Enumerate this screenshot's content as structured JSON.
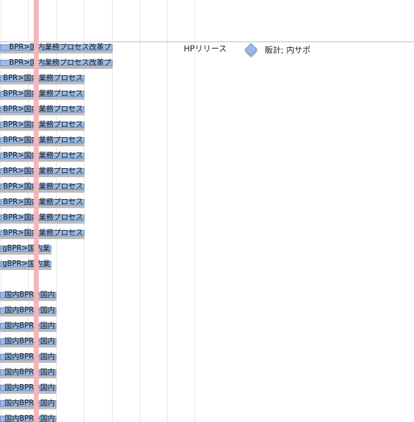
{
  "timeline": {
    "milestone_label": "HPリリース",
    "legend_label": "販計; 内サポ",
    "colors": {
      "bar_fill": "#9cbbe6",
      "bar_border": "#6f94c9",
      "bar_shadow": "#bdbdbd",
      "today_line": "#f4b6bb",
      "gridline": "#e6e6e6"
    },
    "tasks": [
      {
        "label": "BPR>国内業務プロセス改革プ"
      },
      {
        "label": "BPR>国内業務プロセス改革プ"
      },
      {
        "label": "BPR>国内業務プロセス"
      },
      {
        "label": "BPR>国内業務プロセス"
      },
      {
        "label": "BPR>国内業務プロセス"
      },
      {
        "label": "BPR>国内業務プロセス"
      },
      {
        "label": "BPR>国内業務プロセス"
      },
      {
        "label": "BPR>国内業務プロセス"
      },
      {
        "label": "BPR>国内業務プロセス"
      },
      {
        "label": "BPR>国内業務プロセス"
      },
      {
        "label": "BPR>国内業務プロセス"
      },
      {
        "label": "BPR>国内業務プロセス"
      },
      {
        "label": "BPR>国内業務プロセス"
      },
      {
        "label": "gBPR>国内業"
      },
      {
        "label": "gBPR>国内業"
      },
      {
        "label": ""
      },
      {
        "label": "国内BPR>国内"
      },
      {
        "label": "国内BPR>国内"
      },
      {
        "label": "国内BPR>国内"
      },
      {
        "label": "国内BPR>国内"
      },
      {
        "label": "国内BPR>国内"
      },
      {
        "label": "国内BPR>国内"
      },
      {
        "label": "国内BPR>国内"
      },
      {
        "label": "国内BPR>国内"
      },
      {
        "label": "国内BPR>国内"
      }
    ]
  }
}
